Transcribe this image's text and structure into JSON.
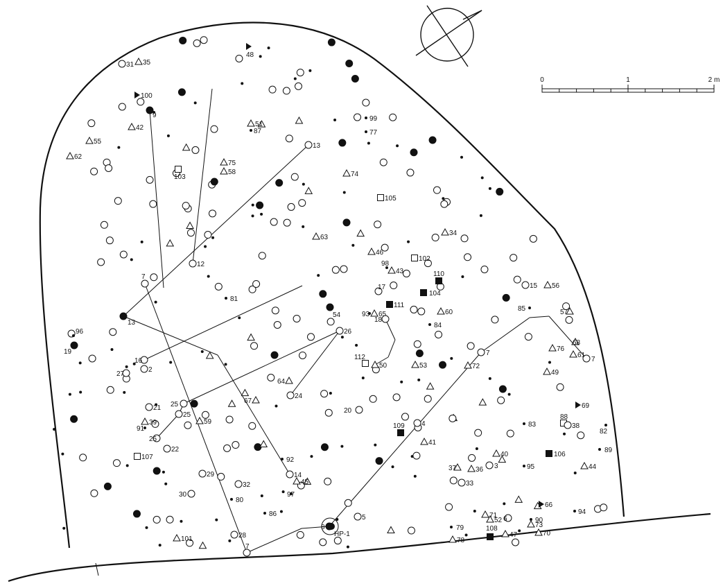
{
  "scale": {
    "labels": [
      "0",
      "1",
      "2 m"
    ]
  },
  "features": [
    {
      "label": "31",
      "type": "circle"
    },
    {
      "label": "35",
      "type": "triangle"
    },
    {
      "label": "48",
      "type": "flag"
    },
    {
      "label": "100",
      "type": "flag"
    },
    {
      "label": "9",
      "type": "dot"
    },
    {
      "label": "42",
      "type": "triangle"
    },
    {
      "label": "55",
      "type": "triangle"
    },
    {
      "label": "62",
      "type": "triangle"
    },
    {
      "label": "51",
      "type": "triangle"
    },
    {
      "label": "87",
      "type": "point"
    },
    {
      "label": "99",
      "type": "point"
    },
    {
      "label": "77",
      "type": "point"
    },
    {
      "label": "13",
      "type": "circle"
    },
    {
      "label": "75",
      "type": "triangle"
    },
    {
      "label": "58",
      "type": "triangle"
    },
    {
      "label": "103",
      "type": "square"
    },
    {
      "label": "74",
      "type": "triangle"
    },
    {
      "label": "105",
      "type": "square"
    },
    {
      "label": "63",
      "type": "triangle"
    },
    {
      "label": "34",
      "type": "triangle"
    },
    {
      "label": "46",
      "type": "triangle"
    },
    {
      "label": "102",
      "type": "square"
    },
    {
      "label": "98",
      "type": "point"
    },
    {
      "label": "43",
      "type": "triangle"
    },
    {
      "label": "12",
      "type": "circle"
    },
    {
      "label": "7",
      "type": "circle"
    },
    {
      "label": "110",
      "type": "filled-square"
    },
    {
      "label": "104",
      "type": "filled-square"
    },
    {
      "label": "15",
      "type": "circle"
    },
    {
      "label": "56",
      "type": "triangle"
    },
    {
      "label": "81",
      "type": "point"
    },
    {
      "label": "17",
      "type": "circle"
    },
    {
      "label": "111",
      "type": "filled-square"
    },
    {
      "label": "54",
      "type": "dot"
    },
    {
      "label": "93",
      "type": "point"
    },
    {
      "label": "65",
      "type": "triangle"
    },
    {
      "label": "18",
      "type": "circle"
    },
    {
      "label": "60",
      "type": "triangle"
    },
    {
      "label": "84",
      "type": "point"
    },
    {
      "label": "85",
      "type": "point"
    },
    {
      "label": "57",
      "type": "triangle"
    },
    {
      "label": "13",
      "type": "dot"
    },
    {
      "label": "26",
      "type": "circle"
    },
    {
      "label": "96",
      "type": "point"
    },
    {
      "label": "19",
      "type": "dot"
    },
    {
      "label": "68",
      "type": "triangle"
    },
    {
      "label": "76",
      "type": "triangle"
    },
    {
      "label": "61",
      "type": "triangle"
    },
    {
      "label": "7",
      "type": "circle"
    },
    {
      "label": "16",
      "type": "circle"
    },
    {
      "label": "2",
      "type": "circle"
    },
    {
      "label": "27",
      "type": "circle"
    },
    {
      "label": "112",
      "type": "square"
    },
    {
      "label": "50",
      "type": "triangle"
    },
    {
      "label": "53",
      "type": "triangle"
    },
    {
      "label": "7",
      "type": "circle"
    },
    {
      "label": "72",
      "type": "triangle"
    },
    {
      "label": "49",
      "type": "triangle"
    },
    {
      "label": "64",
      "type": "triangle"
    },
    {
      "label": "24",
      "type": "circle"
    },
    {
      "label": "67",
      "type": "triangle"
    },
    {
      "label": "69",
      "type": "flag"
    },
    {
      "label": "21",
      "type": "circle"
    },
    {
      "label": "25",
      "type": "circle"
    },
    {
      "label": "25",
      "type": "circle"
    },
    {
      "label": "59",
      "type": "triangle"
    },
    {
      "label": "20",
      "type": "circle"
    },
    {
      "label": "39",
      "type": "triangle"
    },
    {
      "label": "91",
      "type": "point"
    },
    {
      "label": "25",
      "type": "circle"
    },
    {
      "label": "109",
      "type": "filled-square"
    },
    {
      "label": "4",
      "type": "circle"
    },
    {
      "label": "41",
      "type": "triangle"
    },
    {
      "label": "83",
      "type": "point"
    },
    {
      "label": "88",
      "type": "square"
    },
    {
      "label": "38",
      "type": "circle"
    },
    {
      "label": "82",
      "type": "point"
    },
    {
      "label": "22",
      "type": "circle"
    },
    {
      "label": "107",
      "type": "square"
    },
    {
      "label": "92",
      "type": "point"
    },
    {
      "label": "40",
      "type": "triangle"
    },
    {
      "label": "106",
      "type": "filled-square"
    },
    {
      "label": "89",
      "type": "point"
    },
    {
      "label": "29",
      "type": "circle"
    },
    {
      "label": "14",
      "type": "circle"
    },
    {
      "label": "45",
      "type": "triangle"
    },
    {
      "label": "37",
      "type": "triangle"
    },
    {
      "label": "36",
      "type": "triangle"
    },
    {
      "label": "3",
      "type": "circle"
    },
    {
      "label": "95",
      "type": "point"
    },
    {
      "label": "44",
      "type": "triangle"
    },
    {
      "label": "33",
      "type": "circle"
    },
    {
      "label": "32",
      "type": "circle"
    },
    {
      "label": "30",
      "type": "circle"
    },
    {
      "label": "80",
      "type": "point"
    },
    {
      "label": "97",
      "type": "point"
    },
    {
      "label": "66",
      "type": "flag"
    },
    {
      "label": "94",
      "type": "point"
    },
    {
      "label": "86",
      "type": "point"
    },
    {
      "label": "71",
      "type": "triangle"
    },
    {
      "label": "52",
      "type": "triangle"
    },
    {
      "label": "6",
      "type": "circle"
    },
    {
      "label": "90",
      "type": "point"
    },
    {
      "label": "73",
      "type": "triangle"
    },
    {
      "label": "5",
      "type": "circle"
    },
    {
      "label": "8",
      "type": "dot"
    },
    {
      "label": "HP-1",
      "type": "hearth"
    },
    {
      "label": "28",
      "type": "circle"
    },
    {
      "label": "79",
      "type": "point"
    },
    {
      "label": "108",
      "type": "filled-square"
    },
    {
      "label": "47",
      "type": "triangle"
    },
    {
      "label": "70",
      "type": "triangle"
    },
    {
      "label": "78",
      "type": "triangle"
    },
    {
      "label": "101",
      "type": "triangle"
    },
    {
      "label": "7",
      "type": "circle"
    }
  ],
  "colors": {
    "ink": "#111111",
    "paper": "#ffffff"
  }
}
